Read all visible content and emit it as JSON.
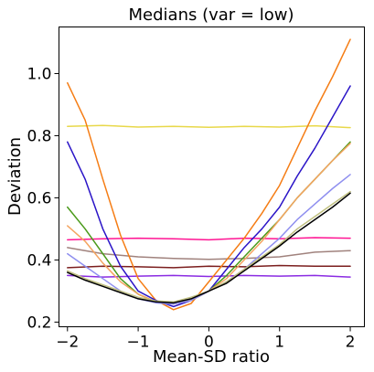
{
  "chart_data": {
    "type": "line",
    "title": "Medians (var = low)",
    "xlabel": "Mean-SD ratio",
    "ylabel": "Deviation",
    "xlim": [
      -2.12,
      2.2
    ],
    "ylim": [
      0.185,
      1.15
    ],
    "x_ticks": [
      -2,
      -1,
      0,
      1,
      2
    ],
    "x_tick_labels": [
      "−2",
      "−1",
      "0",
      "1",
      "2"
    ],
    "y_ticks": [
      0.2,
      0.4,
      0.6,
      0.8,
      1.0
    ],
    "y_tick_labels": [
      "0.2",
      "0.4",
      "0.6",
      "0.8",
      "1.0"
    ],
    "grid": false,
    "series": [
      {
        "color": "#e8d84a",
        "x": [
          -2,
          -1.5,
          -1,
          -0.5,
          0,
          0.5,
          1,
          1.5,
          2
        ],
        "y": [
          0.83,
          0.833,
          0.828,
          0.83,
          0.827,
          0.83,
          0.828,
          0.832,
          0.826
        ]
      },
      {
        "color": "#ff1493",
        "x": [
          -2,
          -1.5,
          -1,
          -0.5,
          0,
          0.5,
          1,
          1.5,
          2
        ],
        "y": [
          0.465,
          0.468,
          0.47,
          0.468,
          0.465,
          0.47,
          0.468,
          0.472,
          0.47
        ]
      },
      {
        "color": "#a0827d",
        "x": [
          -2,
          -1.5,
          -1,
          -0.5,
          0,
          0.5,
          1,
          1.5,
          2
        ],
        "y": [
          0.44,
          0.42,
          0.41,
          0.405,
          0.402,
          0.405,
          0.41,
          0.425,
          0.43
        ]
      },
      {
        "color": "#7b1e1e",
        "x": [
          -2,
          -1.5,
          -1,
          -0.5,
          0,
          0.5,
          1,
          1.5,
          2
        ],
        "y": [
          0.375,
          0.38,
          0.378,
          0.375,
          0.38,
          0.378,
          0.382,
          0.38,
          0.38
        ]
      },
      {
        "color": "#8a2be2",
        "x": [
          -2,
          -1.5,
          -1,
          -0.5,
          0,
          0.5,
          1,
          1.5,
          2
        ],
        "y": [
          0.35,
          0.345,
          0.348,
          0.35,
          0.347,
          0.35,
          0.348,
          0.35,
          0.345
        ]
      },
      {
        "color": "#f57d15",
        "x": [
          -2,
          -1.75,
          -1.5,
          -1.25,
          -1,
          -0.75,
          -0.5,
          -0.25,
          0,
          0.25,
          0.5,
          0.75,
          1,
          1.25,
          1.5,
          1.75,
          2
        ],
        "y": [
          0.97,
          0.85,
          0.66,
          0.48,
          0.34,
          0.27,
          0.24,
          0.26,
          0.33,
          0.4,
          0.47,
          0.55,
          0.64,
          0.76,
          0.88,
          0.99,
          1.11
        ]
      },
      {
        "color": "#2a14c7",
        "x": [
          -2,
          -1.75,
          -1.5,
          -1.25,
          -1,
          -0.75,
          -0.5,
          -0.25,
          0,
          0.25,
          0.5,
          0.75,
          1,
          1.25,
          1.5,
          1.75,
          2
        ],
        "y": [
          0.78,
          0.66,
          0.5,
          0.38,
          0.3,
          0.27,
          0.25,
          0.27,
          0.3,
          0.37,
          0.44,
          0.5,
          0.57,
          0.67,
          0.76,
          0.86,
          0.96
        ]
      },
      {
        "color": "#4a9a1a",
        "x": [
          -2,
          -1.75,
          -1.5,
          -1.25,
          -1,
          -0.75,
          -0.5,
          -0.25,
          0,
          0.25,
          0.5,
          0.75,
          1,
          1.25,
          1.5,
          1.75,
          2
        ],
        "y": [
          0.57,
          0.5,
          0.42,
          0.34,
          0.29,
          0.265,
          0.26,
          0.27,
          0.3,
          0.35,
          0.41,
          0.47,
          0.53,
          0.6,
          0.66,
          0.72,
          0.78
        ]
      },
      {
        "color": "#f4a460",
        "x": [
          -2,
          -1.75,
          -1.5,
          -1.25,
          -1,
          -0.75,
          -0.5,
          -0.25,
          0,
          0.25,
          0.5,
          0.75,
          1,
          1.25,
          1.5,
          1.75,
          2
        ],
        "y": [
          0.51,
          0.46,
          0.39,
          0.33,
          0.29,
          0.265,
          0.258,
          0.27,
          0.3,
          0.34,
          0.4,
          0.46,
          0.53,
          0.6,
          0.66,
          0.72,
          0.775
        ]
      },
      {
        "color": "#8f8fef",
        "x": [
          -2,
          -1.75,
          -1.5,
          -1.25,
          -1,
          -0.75,
          -0.5,
          -0.25,
          0,
          0.25,
          0.5,
          0.75,
          1,
          1.25,
          1.5,
          1.75,
          2
        ],
        "y": [
          0.42,
          0.38,
          0.34,
          0.3,
          0.275,
          0.262,
          0.258,
          0.27,
          0.3,
          0.33,
          0.37,
          0.42,
          0.47,
          0.53,
          0.58,
          0.63,
          0.675
        ]
      },
      {
        "color": "#c0c080",
        "x": [
          -2,
          -1.75,
          -1.5,
          -1.25,
          -1,
          -0.75,
          -0.5,
          -0.25,
          0,
          0.25,
          0.5,
          0.75,
          1,
          1.25,
          1.5,
          1.75,
          2
        ],
        "y": [
          0.365,
          0.34,
          0.32,
          0.3,
          0.28,
          0.268,
          0.265,
          0.28,
          0.3,
          0.33,
          0.37,
          0.41,
          0.45,
          0.5,
          0.54,
          0.58,
          0.62
        ]
      },
      {
        "color": "#000000",
        "x": [
          -2,
          -1.75,
          -1.5,
          -1.25,
          -1,
          -0.75,
          -0.5,
          -0.25,
          0,
          0.25,
          0.5,
          0.75,
          1,
          1.25,
          1.5,
          1.75,
          2
        ],
        "y": [
          0.36,
          0.335,
          0.315,
          0.295,
          0.275,
          0.265,
          0.262,
          0.275,
          0.3,
          0.325,
          0.365,
          0.405,
          0.445,
          0.49,
          0.53,
          0.57,
          0.615
        ]
      }
    ]
  }
}
